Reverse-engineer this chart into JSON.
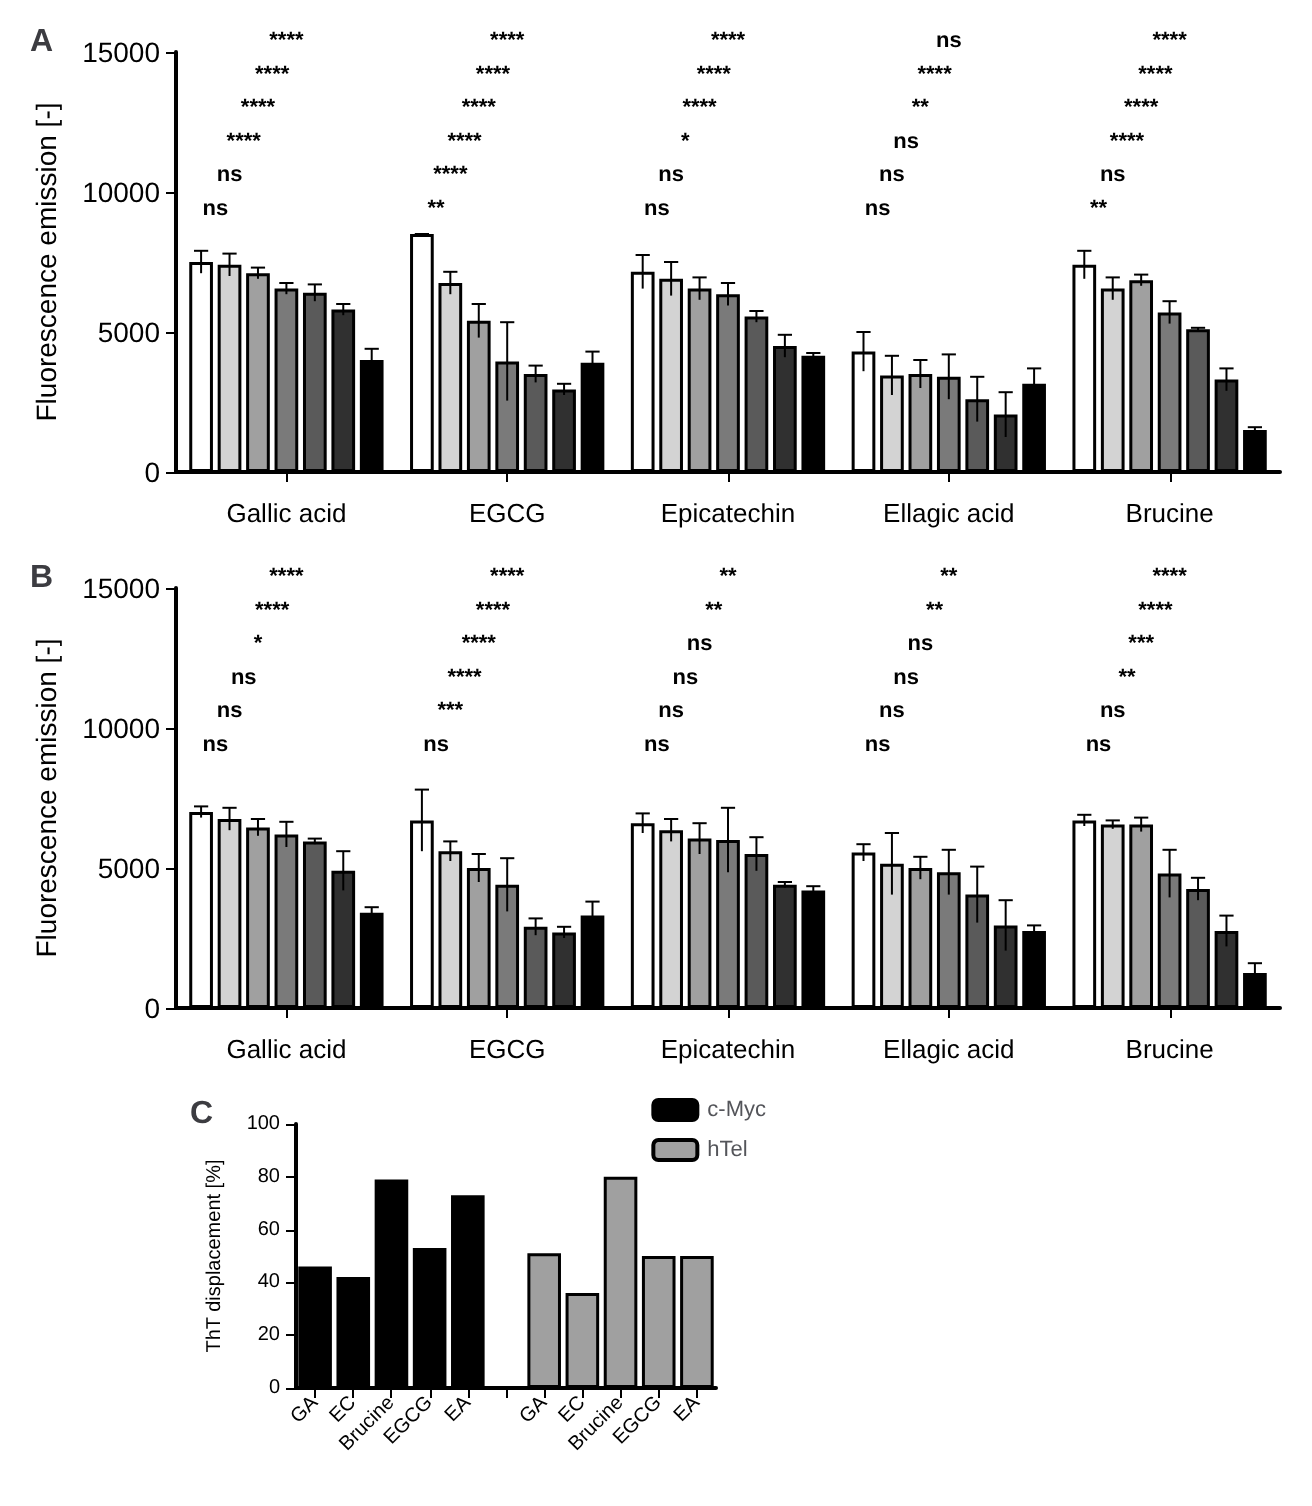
{
  "chart_data": [
    {
      "type": "bar",
      "title": "A",
      "ylabel": "Fluorescence emission [-]",
      "categories": [
        "Gallic acid",
        "EGCG",
        "Epicatechin",
        "Ellagic acid",
        "Brucine"
      ],
      "ylim": [
        0,
        15000
      ],
      "yticks": [
        0,
        5000,
        10000,
        15000
      ],
      "grid": false,
      "series": [
        {
          "color": "#ffffff",
          "values": [
            7500,
            8500,
            7150,
            4300,
            7400
          ],
          "errors": [
            400,
            0,
            600,
            700,
            500
          ]
        },
        {
          "color": "#d3d3d3",
          "values": [
            7400,
            6750,
            6900,
            3450,
            6550
          ],
          "errors": [
            400,
            400,
            600,
            700,
            400
          ]
        },
        {
          "color": "#a0a0a0",
          "values": [
            7100,
            5400,
            6550,
            3500,
            6850
          ],
          "errors": [
            200,
            600,
            400,
            500,
            200
          ]
        },
        {
          "color": "#7a7a7a",
          "values": [
            6550,
            3950,
            6350,
            3400,
            5700
          ],
          "errors": [
            200,
            1400,
            400,
            800,
            400
          ]
        },
        {
          "color": "#5a5a5a",
          "values": [
            6400,
            3500,
            5550,
            2600,
            5100
          ],
          "errors": [
            300,
            300,
            200,
            800,
            50
          ]
        },
        {
          "color": "#303030",
          "values": [
            5800,
            2950,
            4500,
            2050,
            3300
          ],
          "errors": [
            200,
            200,
            400,
            800,
            400
          ]
        },
        {
          "color": "#000000",
          "values": [
            4000,
            3900,
            4150,
            3150,
            1500
          ],
          "errors": [
            400,
            400,
            100,
            550,
            100
          ]
        }
      ],
      "annotations": [
        "ns",
        "ns",
        "****",
        "****",
        "****",
        "****",
        "**",
        "****",
        "****",
        "****",
        "****",
        "****",
        "ns",
        "ns",
        "*",
        "****",
        "****",
        "****",
        "ns",
        "ns",
        "ns",
        "**",
        "****",
        "ns",
        "**",
        "ns",
        "****",
        "****",
        "****",
        "****"
      ]
    },
    {
      "type": "bar",
      "title": "B",
      "ylabel": "Fluorescence emission [-]",
      "categories": [
        "Gallic acid",
        "EGCG",
        "Epicatechin",
        "Ellagic acid",
        "Brucine"
      ],
      "ylim": [
        0,
        15000
      ],
      "yticks": [
        0,
        5000,
        10000,
        15000
      ],
      "grid": false,
      "series": [
        {
          "color": "#ffffff",
          "values": [
            7000,
            6700,
            6600,
            5550,
            6700
          ],
          "errors": [
            200,
            1100,
            350,
            300,
            200
          ]
        },
        {
          "color": "#d3d3d3",
          "values": [
            6750,
            5600,
            6350,
            5150,
            6550
          ],
          "errors": [
            400,
            350,
            400,
            1100,
            150
          ]
        },
        {
          "color": "#a0a0a0",
          "values": [
            6450,
            5000,
            6050,
            5000,
            6550
          ],
          "errors": [
            300,
            500,
            550,
            400,
            250
          ]
        },
        {
          "color": "#7a7a7a",
          "values": [
            6200,
            4400,
            6000,
            4850,
            4800
          ],
          "errors": [
            450,
            950,
            1150,
            800,
            850
          ]
        },
        {
          "color": "#5a5a5a",
          "values": [
            5950,
            2900,
            5500,
            4050,
            4250
          ],
          "errors": [
            100,
            300,
            600,
            1000,
            400
          ]
        },
        {
          "color": "#303030",
          "values": [
            4900,
            2700,
            4400,
            2950,
            2750
          ],
          "errors": [
            700,
            200,
            100,
            900,
            550
          ]
        },
        {
          "color": "#000000",
          "values": [
            3400,
            3300,
            4200,
            2750,
            1250
          ],
          "errors": [
            200,
            500,
            150,
            200,
            350
          ]
        }
      ],
      "annotations": [
        "ns",
        "ns",
        "ns",
        "*",
        "****",
        "****",
        "ns",
        "***",
        "****",
        "****",
        "****",
        "****",
        "ns",
        "ns",
        "ns",
        "ns",
        "**",
        "**",
        "ns",
        "ns",
        "ns",
        "ns",
        "**",
        "**",
        "ns",
        "ns",
        "**",
        "***",
        "****",
        "****"
      ]
    },
    {
      "type": "bar",
      "title": "C",
      "ylabel": "ThT displacement [%]",
      "categories": [
        "GA",
        "EC",
        "Brucine",
        "EGCG",
        "EA",
        null,
        "GA",
        "EC",
        "Brucine",
        "EGCG",
        "EA"
      ],
      "ylim": [
        0,
        100
      ],
      "yticks": [
        0,
        20,
        40,
        60,
        80,
        100
      ],
      "grid": false,
      "legend": "top right",
      "series": [
        {
          "name": "c-Myc",
          "color": "#000000",
          "values": [
            46,
            42,
            79,
            53,
            73,
            null,
            null,
            null,
            null,
            null,
            null
          ]
        },
        {
          "name": "hTel",
          "color": "#a0a0a0",
          "values": [
            null,
            null,
            null,
            null,
            null,
            null,
            51,
            36,
            80,
            50,
            50
          ]
        }
      ]
    }
  ]
}
